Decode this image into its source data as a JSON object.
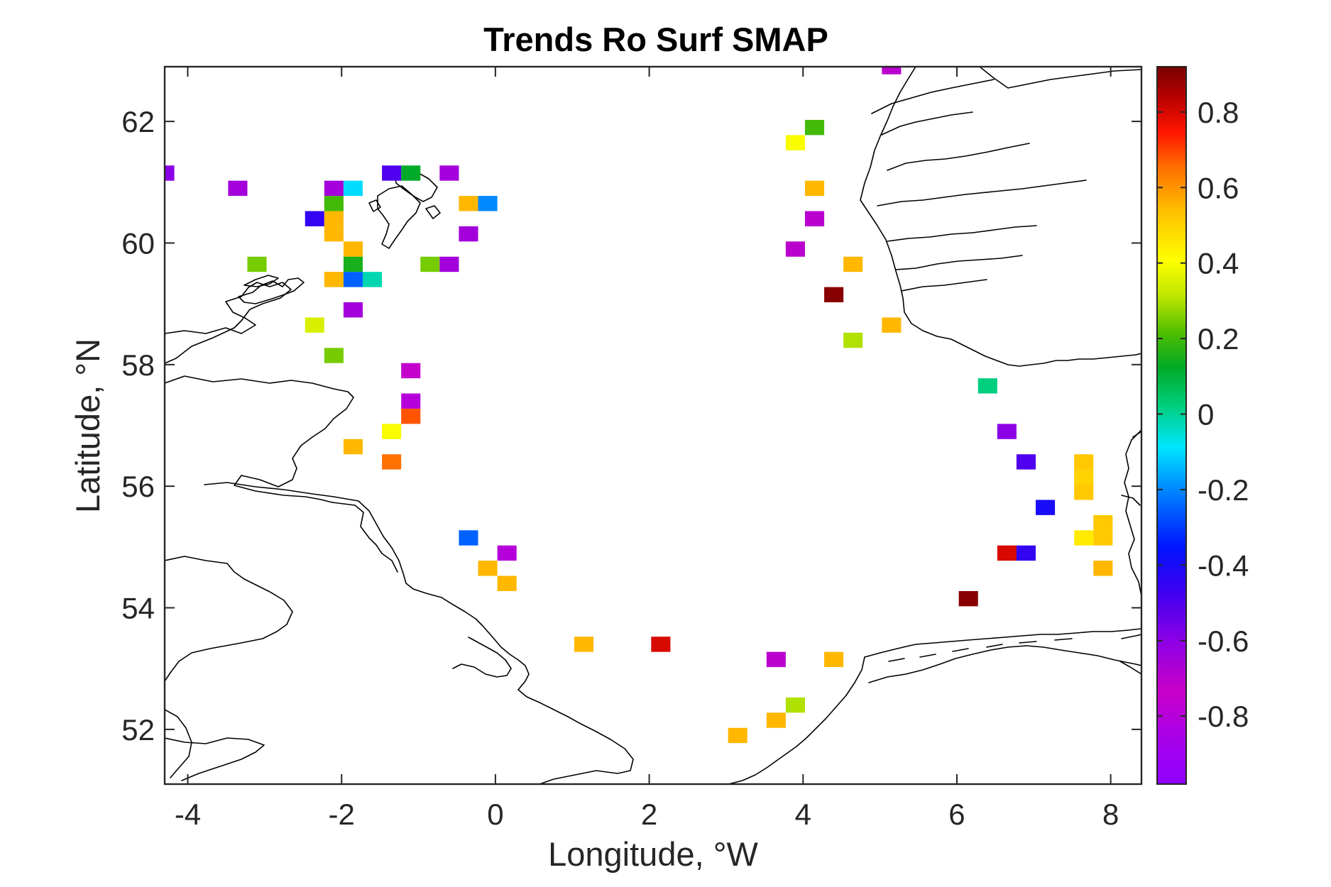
{
  "chart_data": {
    "type": "heatmap",
    "title": "Trends Ro Surf SMAP",
    "xlabel": "Longitude, °W",
    "ylabel": "Latitude, °N",
    "xlim": [
      -4.3,
      8.4
    ],
    "ylim": [
      51.1,
      62.9
    ],
    "xticks": [
      -4,
      -2,
      0,
      2,
      4,
      6,
      8
    ],
    "yticks": [
      52,
      54,
      56,
      58,
      60,
      62
    ],
    "colorbar": {
      "range": [
        -0.98,
        0.92
      ],
      "ticks": [
        0.8,
        0.6,
        0.4,
        0.2,
        0,
        -0.2,
        -0.4,
        -0.6,
        -0.8
      ],
      "colormap": "jet-like rainbow (purple-magenta-blue-cyan-green-yellow-orange-red-dark red)"
    },
    "cell_size_deg": [
      0.25,
      0.25
    ],
    "cells": [
      {
        "lon": -4.3,
        "lat": 61.15,
        "v": -0.6
      },
      {
        "lon": -3.35,
        "lat": 60.9,
        "v": -0.65
      },
      {
        "lon": -2.1,
        "lat": 60.9,
        "v": -0.65
      },
      {
        "lon": -1.85,
        "lat": 60.9,
        "v": -0.1
      },
      {
        "lon": -1.35,
        "lat": 61.15,
        "v": -0.5
      },
      {
        "lon": -1.1,
        "lat": 61.15,
        "v": 0.12
      },
      {
        "lon": -0.6,
        "lat": 61.15,
        "v": -0.65
      },
      {
        "lon": -2.1,
        "lat": 60.65,
        "v": 0.2
      },
      {
        "lon": -2.35,
        "lat": 60.4,
        "v": -0.45
      },
      {
        "lon": -2.1,
        "lat": 60.4,
        "v": 0.55
      },
      {
        "lon": -2.1,
        "lat": 60.15,
        "v": 0.55
      },
      {
        "lon": -0.35,
        "lat": 60.65,
        "v": 0.55
      },
      {
        "lon": -0.1,
        "lat": 60.65,
        "v": -0.2
      },
      {
        "lon": -0.35,
        "lat": 60.15,
        "v": -0.65
      },
      {
        "lon": -1.85,
        "lat": 59.9,
        "v": 0.55
      },
      {
        "lon": -3.1,
        "lat": 59.65,
        "v": 0.25
      },
      {
        "lon": -1.85,
        "lat": 59.65,
        "v": 0.15
      },
      {
        "lon": -0.85,
        "lat": 59.65,
        "v": 0.25
      },
      {
        "lon": -0.6,
        "lat": 59.65,
        "v": -0.65
      },
      {
        "lon": -2.1,
        "lat": 59.4,
        "v": 0.55
      },
      {
        "lon": -1.85,
        "lat": 59.4,
        "v": -0.25
      },
      {
        "lon": -1.6,
        "lat": 59.4,
        "v": -0.02
      },
      {
        "lon": -1.85,
        "lat": 58.9,
        "v": -0.65
      },
      {
        "lon": -2.35,
        "lat": 58.65,
        "v": 0.35
      },
      {
        "lon": -2.1,
        "lat": 58.15,
        "v": 0.25
      },
      {
        "lon": -1.1,
        "lat": 57.9,
        "v": -0.75
      },
      {
        "lon": -1.1,
        "lat": 57.4,
        "v": -0.8
      },
      {
        "lon": -1.1,
        "lat": 57.15,
        "v": 0.68
      },
      {
        "lon": -1.35,
        "lat": 56.9,
        "v": 0.4
      },
      {
        "lon": -1.85,
        "lat": 56.65,
        "v": 0.55
      },
      {
        "lon": -1.35,
        "lat": 56.4,
        "v": 0.65
      },
      {
        "lon": -0.35,
        "lat": 55.15,
        "v": -0.25
      },
      {
        "lon": 0.15,
        "lat": 54.9,
        "v": -0.8
      },
      {
        "lon": -0.1,
        "lat": 54.65,
        "v": 0.55
      },
      {
        "lon": 0.15,
        "lat": 54.4,
        "v": 0.55
      },
      {
        "lon": 1.15,
        "lat": 53.4,
        "v": 0.55
      },
      {
        "lon": 2.15,
        "lat": 53.4,
        "v": 0.8
      },
      {
        "lon": 3.65,
        "lat": 53.15,
        "v": -0.7
      },
      {
        "lon": 4.4,
        "lat": 53.15,
        "v": 0.55
      },
      {
        "lon": 3.9,
        "lat": 52.4,
        "v": 0.3
      },
      {
        "lon": 3.65,
        "lat": 52.15,
        "v": 0.55
      },
      {
        "lon": 3.15,
        "lat": 51.9,
        "v": 0.55
      },
      {
        "lon": 5.15,
        "lat": 62.9,
        "v": -0.7
      },
      {
        "lon": 4.15,
        "lat": 61.9,
        "v": 0.2
      },
      {
        "lon": 3.9,
        "lat": 61.65,
        "v": 0.4
      },
      {
        "lon": 4.15,
        "lat": 60.9,
        "v": 0.55
      },
      {
        "lon": 4.15,
        "lat": 60.4,
        "v": -0.7
      },
      {
        "lon": 3.9,
        "lat": 59.9,
        "v": -0.7
      },
      {
        "lon": 4.65,
        "lat": 59.65,
        "v": 0.55
      },
      {
        "lon": 4.4,
        "lat": 59.15,
        "v": 0.9
      },
      {
        "lon": 5.15,
        "lat": 58.65,
        "v": 0.55
      },
      {
        "lon": 4.65,
        "lat": 58.4,
        "v": 0.3
      },
      {
        "lon": 6.4,
        "lat": 57.65,
        "v": 0.02
      },
      {
        "lon": 6.65,
        "lat": 56.9,
        "v": -0.6
      },
      {
        "lon": 6.9,
        "lat": 56.4,
        "v": -0.5
      },
      {
        "lon": 7.15,
        "lat": 55.65,
        "v": -0.4
      },
      {
        "lon": 7.65,
        "lat": 56.4,
        "v": 0.52
      },
      {
        "lon": 7.65,
        "lat": 56.15,
        "v": 0.5
      },
      {
        "lon": 7.65,
        "lat": 55.9,
        "v": 0.52
      },
      {
        "lon": 7.9,
        "lat": 55.4,
        "v": 0.52
      },
      {
        "lon": 7.9,
        "lat": 55.15,
        "v": 0.52
      },
      {
        "lon": 7.65,
        "lat": 55.15,
        "v": 0.45
      },
      {
        "lon": 6.65,
        "lat": 54.9,
        "v": 0.8
      },
      {
        "lon": 6.9,
        "lat": 54.9,
        "v": -0.45
      },
      {
        "lon": 7.9,
        "lat": 54.65,
        "v": 0.55
      },
      {
        "lon": 6.15,
        "lat": 54.15,
        "v": 0.9
      }
    ]
  }
}
